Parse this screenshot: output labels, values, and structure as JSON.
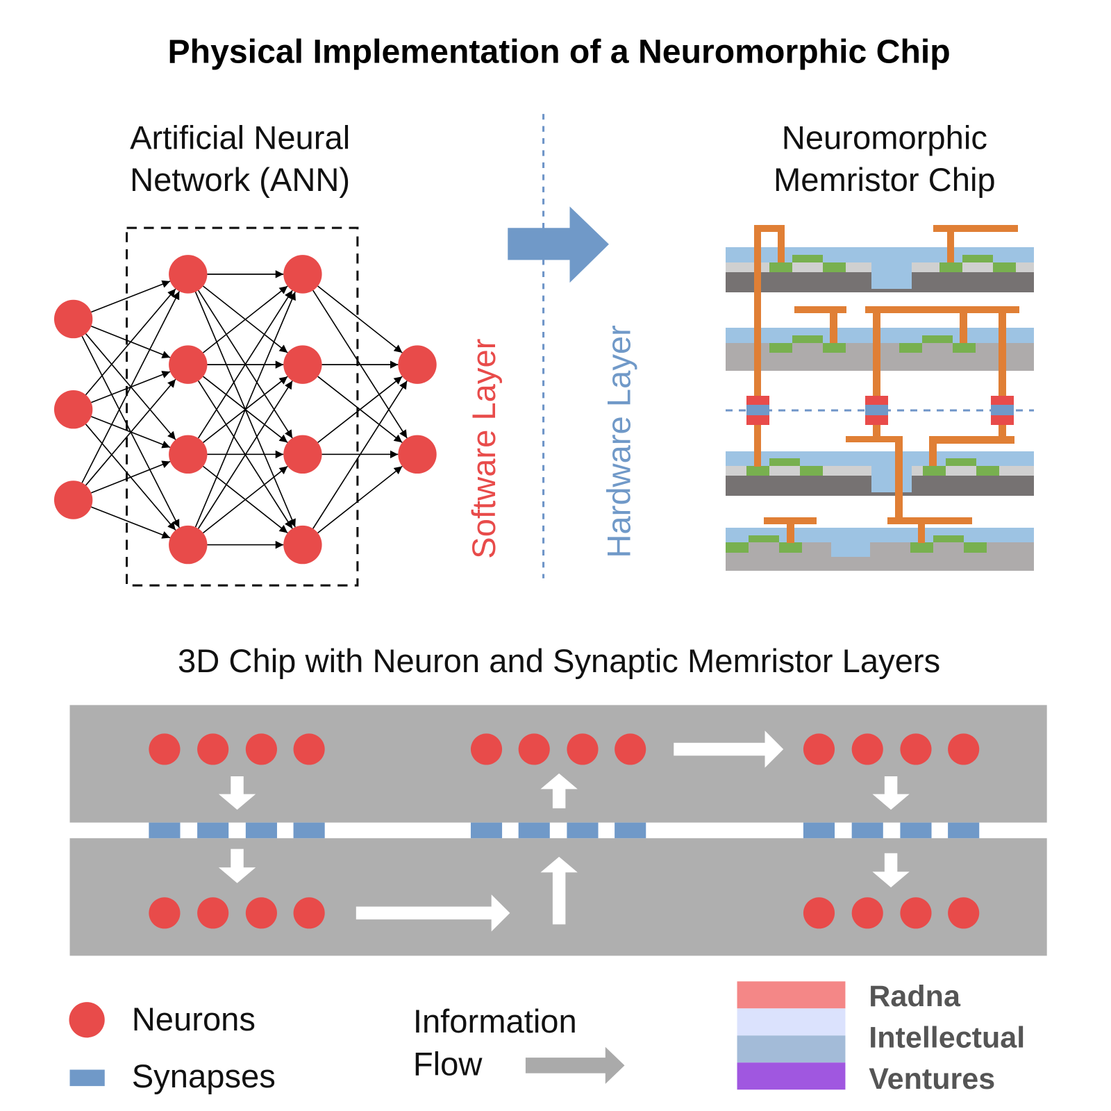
{
  "title": "Physical Implementation of a Neuromorphic Chip",
  "ann": {
    "line1": "Artificial Neural",
    "line2": "Network (ANN)"
  },
  "chip": {
    "line1": "Neuromorphic",
    "line2": "Memristor Chip"
  },
  "software_label": "Software Layer",
  "hardware_label": "Hardware Layer",
  "chip3d_title": "3D Chip with Neuron and Synaptic Memristor Layers",
  "legend": {
    "neurons": "Neurons",
    "synapses": "Synapses",
    "flow_line1": "Information",
    "flow_line2": "Flow"
  },
  "logo": {
    "line1": "Radna",
    "line2": "Intellectual",
    "line3": "Ventures"
  },
  "colors": {
    "neuron": "#e84b4a",
    "synapse": "#7099c8",
    "wire": "#e07f35",
    "software": "#e84b4a",
    "hardware": "#7099c8",
    "panel": "#afafaf"
  }
}
